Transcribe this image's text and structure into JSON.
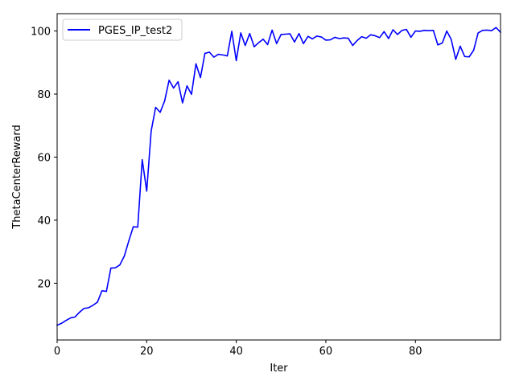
{
  "chart_data": {
    "type": "line",
    "xlabel": "Iter",
    "ylabel": "ThetaCenterReward",
    "xlim": [
      0,
      99
    ],
    "ylim": [
      2,
      105.5
    ],
    "x_ticks": [
      0,
      20,
      40,
      60,
      80
    ],
    "y_ticks": [
      20,
      40,
      60,
      80,
      100
    ],
    "grid": false,
    "legend_position": "top-left",
    "series": [
      {
        "name": "PGES_IP_test2",
        "color": "#0000ff",
        "x": [
          0,
          1,
          2,
          3,
          4,
          5,
          6,
          7,
          8,
          9,
          10,
          11,
          12,
          13,
          14,
          15,
          16,
          17,
          18,
          19,
          20,
          21,
          22,
          23,
          24,
          25,
          26,
          27,
          28,
          29,
          30,
          31,
          32,
          33,
          34,
          35,
          36,
          37,
          38,
          39,
          40,
          41,
          42,
          43,
          44,
          45,
          46,
          47,
          48,
          49,
          50,
          51,
          52,
          53,
          54,
          55,
          56,
          57,
          58,
          59,
          60,
          61,
          62,
          63,
          64,
          65,
          66,
          67,
          68,
          69,
          70,
          71,
          72,
          73,
          74,
          75,
          76,
          77,
          78,
          79,
          80,
          81,
          82,
          83,
          84,
          85,
          86,
          87,
          88,
          89,
          90,
          91,
          92,
          93,
          94,
          95,
          96,
          97,
          98,
          99
        ],
        "values": [
          6.7,
          7.3,
          8.2,
          9.0,
          9.3,
          10.8,
          12.0,
          12.2,
          13.0,
          14.0,
          17.6,
          17.4,
          24.8,
          24.9,
          25.8,
          28.6,
          33.4,
          37.9,
          37.8,
          59.2,
          49.2,
          68.3,
          75.8,
          74.2,
          77.8,
          84.4,
          81.9,
          83.9,
          77.2,
          82.6,
          79.9,
          89.6,
          85.2,
          92.9,
          93.3,
          91.7,
          92.6,
          92.4,
          92.1,
          99.9,
          90.6,
          99.4,
          95.4,
          99.2,
          95.0,
          96.3,
          97.4,
          95.7,
          100.3,
          96.0,
          98.9,
          99.0,
          99.1,
          96.5,
          99.2,
          96.0,
          98.3,
          97.5,
          98.4,
          98.1,
          97.1,
          97.2,
          98.0,
          97.6,
          97.8,
          97.7,
          95.4,
          97.0,
          98.2,
          97.7,
          98.8,
          98.5,
          97.9,
          99.8,
          97.6,
          100.4,
          98.9,
          100.2,
          100.5,
          98.0,
          100.0,
          99.9,
          100.2,
          100.1,
          100.2,
          95.6,
          96.2,
          100.0,
          97.3,
          91.0,
          95.2,
          91.9,
          91.8,
          93.9,
          99.4,
          100.2,
          100.3,
          100.1,
          101.1,
          99.6
        ]
      }
    ]
  }
}
